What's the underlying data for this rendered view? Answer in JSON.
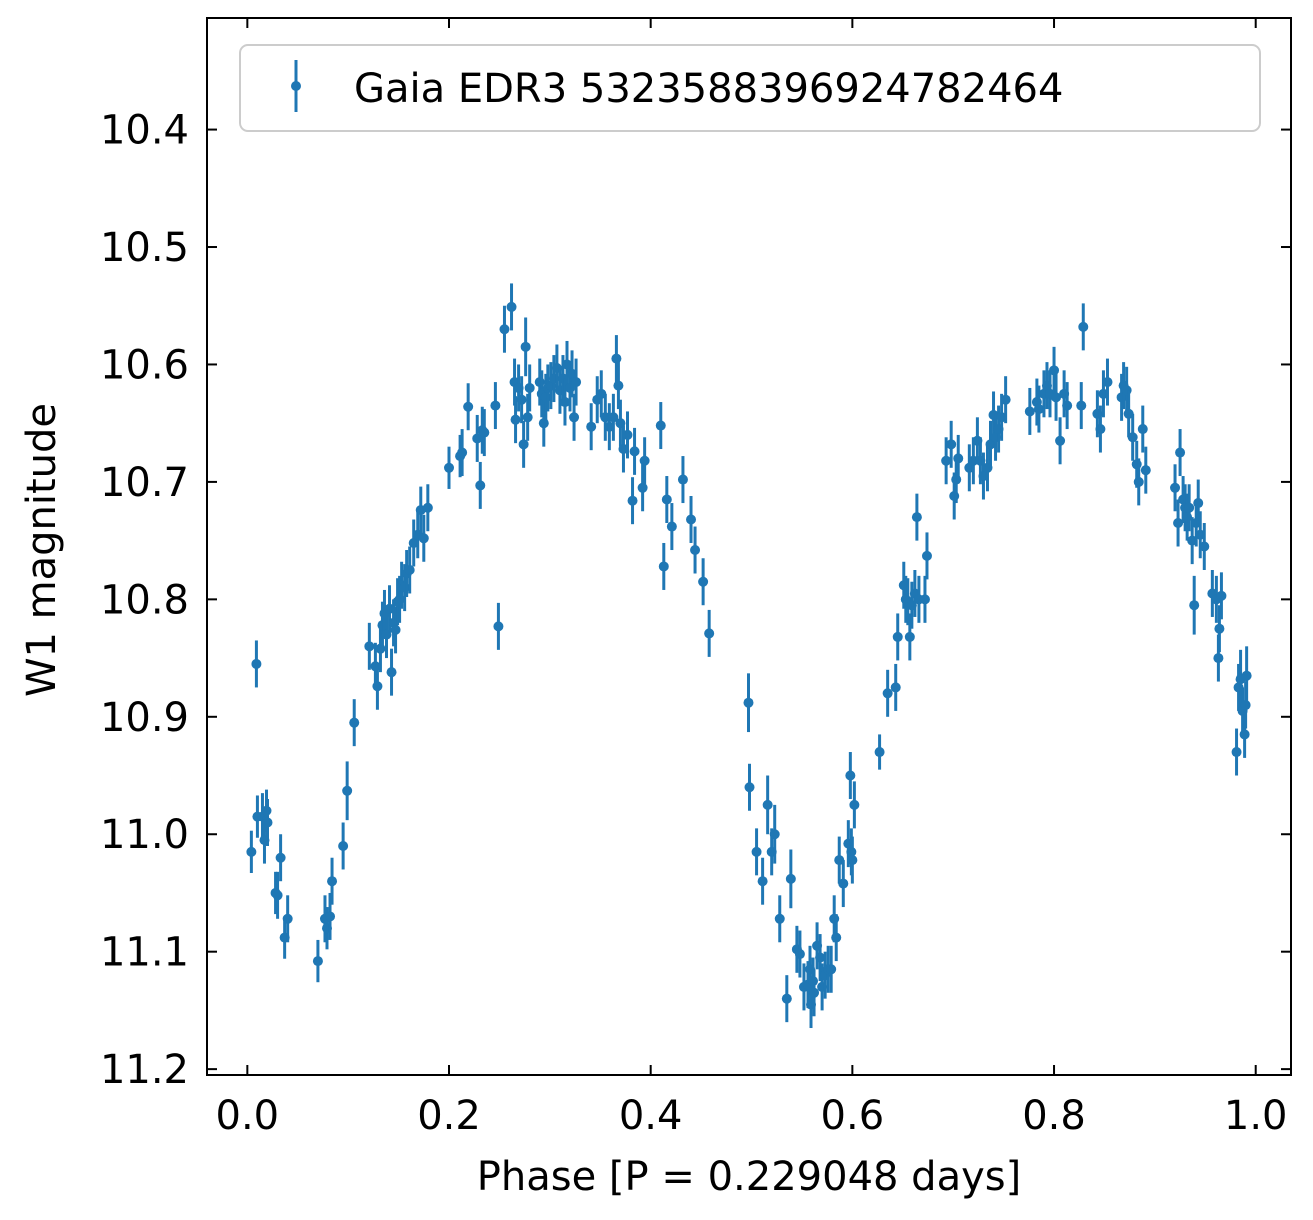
{
  "chart_data": {
    "type": "scatter",
    "title": "",
    "xlabel": "Phase [P = 0.229048 days]",
    "ylabel": "W1 magnitude",
    "xlim": [
      -0.04,
      1.035
    ],
    "ylim": [
      11.205,
      10.305
    ],
    "y_inverted": true,
    "grid": false,
    "legend_position": "top-right",
    "x_ticks": [
      "0.0",
      "0.2",
      "0.4",
      "0.6",
      "0.8",
      "1.0"
    ],
    "y_ticks": [
      "10.4",
      "10.5",
      "10.6",
      "10.7",
      "10.8",
      "10.9",
      "11.0",
      "11.1",
      "11.2"
    ],
    "colors": {
      "series": "#1f77b4",
      "axes": "#000000",
      "legend_frame": "#cccccc"
    },
    "series": [
      {
        "name": "Gaia EDR3 5323588396924782464",
        "points": [
          [
            0.004,
            11.015,
            0.018
          ],
          [
            0.009,
            10.855,
            0.02
          ],
          [
            0.01,
            10.985,
            0.018
          ],
          [
            0.015,
            10.985,
            0.02
          ],
          [
            0.017,
            11.005,
            0.02
          ],
          [
            0.019,
            10.98,
            0.018
          ],
          [
            0.02,
            10.99,
            0.02
          ],
          [
            0.028,
            11.05,
            0.018
          ],
          [
            0.03,
            11.052,
            0.02
          ],
          [
            0.033,
            11.02,
            0.02
          ],
          [
            0.037,
            11.088,
            0.018
          ],
          [
            0.04,
            11.072,
            0.02
          ],
          [
            0.07,
            11.108,
            0.018
          ],
          [
            0.077,
            11.072,
            0.02
          ],
          [
            0.079,
            11.08,
            0.018
          ],
          [
            0.082,
            11.07,
            0.02
          ],
          [
            0.084,
            11.04,
            0.02
          ],
          [
            0.095,
            11.01,
            0.02
          ],
          [
            0.099,
            10.963,
            0.025
          ],
          [
            0.106,
            10.905,
            0.02
          ],
          [
            0.121,
            10.84,
            0.02
          ],
          [
            0.127,
            10.857,
            0.02
          ],
          [
            0.129,
            10.874,
            0.02
          ],
          [
            0.132,
            10.842,
            0.02
          ],
          [
            0.134,
            10.822,
            0.02
          ],
          [
            0.136,
            10.812,
            0.02
          ],
          [
            0.138,
            10.83,
            0.02
          ],
          [
            0.141,
            10.808,
            0.02
          ],
          [
            0.143,
            10.862,
            0.02
          ],
          [
            0.145,
            10.82,
            0.02
          ],
          [
            0.147,
            10.826,
            0.02
          ],
          [
            0.149,
            10.802,
            0.02
          ],
          [
            0.151,
            10.8,
            0.02
          ],
          [
            0.153,
            10.788,
            0.02
          ],
          [
            0.156,
            10.79,
            0.02
          ],
          [
            0.158,
            10.778,
            0.02
          ],
          [
            0.161,
            10.775,
            0.02
          ],
          [
            0.165,
            10.752,
            0.02
          ],
          [
            0.169,
            10.745,
            0.02
          ],
          [
            0.172,
            10.724,
            0.02
          ],
          [
            0.175,
            10.748,
            0.02
          ],
          [
            0.179,
            10.722,
            0.02
          ],
          [
            0.2,
            10.688,
            0.018
          ],
          [
            0.211,
            10.678,
            0.018
          ],
          [
            0.213,
            10.675,
            0.02
          ],
          [
            0.219,
            10.636,
            0.02
          ],
          [
            0.228,
            10.663,
            0.02
          ],
          [
            0.231,
            10.703,
            0.02
          ],
          [
            0.233,
            10.656,
            0.02
          ],
          [
            0.235,
            10.658,
            0.02
          ],
          [
            0.246,
            10.635,
            0.02
          ],
          [
            0.249,
            10.823,
            0.02
          ],
          [
            0.255,
            10.57,
            0.02
          ],
          [
            0.262,
            10.551,
            0.02
          ],
          [
            0.265,
            10.615,
            0.02
          ],
          [
            0.266,
            10.647,
            0.02
          ],
          [
            0.269,
            10.62,
            0.02
          ],
          [
            0.272,
            10.63,
            0.02
          ],
          [
            0.274,
            10.668,
            0.02
          ],
          [
            0.276,
            10.585,
            0.025
          ],
          [
            0.278,
            10.645,
            0.02
          ],
          [
            0.28,
            10.62,
            0.02
          ],
          [
            0.29,
            10.615,
            0.02
          ],
          [
            0.292,
            10.625,
            0.02
          ],
          [
            0.294,
            10.65,
            0.02
          ],
          [
            0.296,
            10.628,
            0.02
          ],
          [
            0.298,
            10.62,
            0.02
          ],
          [
            0.301,
            10.618,
            0.02
          ],
          [
            0.304,
            10.612,
            0.02
          ],
          [
            0.307,
            10.603,
            0.02
          ],
          [
            0.31,
            10.622,
            0.02
          ],
          [
            0.313,
            10.612,
            0.02
          ],
          [
            0.315,
            10.632,
            0.02
          ],
          [
            0.317,
            10.6,
            0.02
          ],
          [
            0.32,
            10.62,
            0.02
          ],
          [
            0.322,
            10.608,
            0.02
          ],
          [
            0.324,
            10.645,
            0.02
          ],
          [
            0.326,
            10.615,
            0.02
          ],
          [
            0.341,
            10.653,
            0.02
          ],
          [
            0.347,
            10.63,
            0.02
          ],
          [
            0.351,
            10.625,
            0.02
          ],
          [
            0.355,
            10.645,
            0.02
          ],
          [
            0.359,
            10.653,
            0.02
          ],
          [
            0.363,
            10.645,
            0.02
          ],
          [
            0.366,
            10.595,
            0.02
          ],
          [
            0.368,
            10.618,
            0.02
          ],
          [
            0.37,
            10.65,
            0.02
          ],
          [
            0.373,
            10.672,
            0.02
          ],
          [
            0.377,
            10.66,
            0.02
          ],
          [
            0.382,
            10.716,
            0.02
          ],
          [
            0.384,
            10.674,
            0.02
          ],
          [
            0.392,
            10.705,
            0.02
          ],
          [
            0.394,
            10.682,
            0.02
          ],
          [
            0.41,
            10.652,
            0.02
          ],
          [
            0.413,
            10.772,
            0.02
          ],
          [
            0.416,
            10.715,
            0.02
          ],
          [
            0.421,
            10.738,
            0.02
          ],
          [
            0.432,
            10.698,
            0.02
          ],
          [
            0.44,
            10.732,
            0.02
          ],
          [
            0.444,
            10.758,
            0.02
          ],
          [
            0.452,
            10.785,
            0.02
          ],
          [
            0.458,
            10.829,
            0.02
          ],
          [
            0.497,
            10.888,
            0.025
          ],
          [
            0.498,
            10.96,
            0.02
          ],
          [
            0.505,
            11.015,
            0.02
          ],
          [
            0.511,
            11.04,
            0.02
          ],
          [
            0.516,
            10.975,
            0.025
          ],
          [
            0.52,
            11.015,
            0.02
          ],
          [
            0.523,
            11.0,
            0.025
          ],
          [
            0.528,
            11.072,
            0.02
          ],
          [
            0.535,
            11.14,
            0.02
          ],
          [
            0.539,
            11.038,
            0.025
          ],
          [
            0.545,
            11.098,
            0.02
          ],
          [
            0.548,
            11.102,
            0.02
          ],
          [
            0.552,
            11.13,
            0.02
          ],
          [
            0.556,
            11.128,
            0.02
          ],
          [
            0.558,
            11.115,
            0.02
          ],
          [
            0.559,
            11.145,
            0.02
          ],
          [
            0.561,
            11.125,
            0.02
          ],
          [
            0.562,
            11.135,
            0.02
          ],
          [
            0.565,
            11.095,
            0.02
          ],
          [
            0.568,
            11.105,
            0.02
          ],
          [
            0.57,
            11.13,
            0.02
          ],
          [
            0.573,
            11.12,
            0.02
          ],
          [
            0.576,
            11.115,
            0.02
          ],
          [
            0.579,
            11.115,
            0.02
          ],
          [
            0.582,
            11.072,
            0.02
          ],
          [
            0.584,
            11.088,
            0.02
          ],
          [
            0.587,
            11.022,
            0.02
          ],
          [
            0.591,
            11.042,
            0.02
          ],
          [
            0.596,
            11.008,
            0.02
          ],
          [
            0.598,
            10.95,
            0.02
          ],
          [
            0.599,
            11.015,
            0.02
          ],
          [
            0.6,
            11.022,
            0.02
          ],
          [
            0.602,
            10.975,
            0.02
          ],
          [
            0.627,
            10.93,
            0.015
          ],
          [
            0.635,
            10.88,
            0.02
          ],
          [
            0.643,
            10.875,
            0.02
          ],
          [
            0.645,
            10.832,
            0.02
          ],
          [
            0.651,
            10.788,
            0.02
          ],
          [
            0.653,
            10.8,
            0.02
          ],
          [
            0.655,
            10.802,
            0.02
          ],
          [
            0.657,
            10.832,
            0.02
          ],
          [
            0.659,
            10.805,
            0.02
          ],
          [
            0.662,
            10.795,
            0.02
          ],
          [
            0.664,
            10.73,
            0.02
          ],
          [
            0.666,
            10.8,
            0.02
          ],
          [
            0.672,
            10.8,
            0.02
          ],
          [
            0.674,
            10.763,
            0.02
          ],
          [
            0.693,
            10.682,
            0.02
          ],
          [
            0.698,
            10.668,
            0.02
          ],
          [
            0.701,
            10.712,
            0.02
          ],
          [
            0.703,
            10.698,
            0.02
          ],
          [
            0.705,
            10.68,
            0.02
          ],
          [
            0.716,
            10.688,
            0.02
          ],
          [
            0.72,
            10.682,
            0.02
          ],
          [
            0.724,
            10.665,
            0.02
          ],
          [
            0.727,
            10.682,
            0.02
          ],
          [
            0.73,
            10.695,
            0.02
          ],
          [
            0.734,
            10.688,
            0.02
          ],
          [
            0.737,
            10.668,
            0.02
          ],
          [
            0.74,
            10.643,
            0.02
          ],
          [
            0.742,
            10.662,
            0.02
          ],
          [
            0.745,
            10.655,
            0.02
          ],
          [
            0.748,
            10.645,
            0.02
          ],
          [
            0.752,
            10.63,
            0.02
          ],
          [
            0.776,
            10.64,
            0.02
          ],
          [
            0.783,
            10.632,
            0.02
          ],
          [
            0.785,
            10.638,
            0.02
          ],
          [
            0.79,
            10.625,
            0.02
          ],
          [
            0.793,
            10.618,
            0.02
          ],
          [
            0.796,
            10.625,
            0.02
          ],
          [
            0.8,
            10.605,
            0.02
          ],
          [
            0.802,
            10.628,
            0.02
          ],
          [
            0.806,
            10.665,
            0.02
          ],
          [
            0.81,
            10.625,
            0.02
          ],
          [
            0.813,
            10.635,
            0.02
          ],
          [
            0.827,
            10.635,
            0.02
          ],
          [
            0.829,
            10.568,
            0.02
          ],
          [
            0.843,
            10.642,
            0.02
          ],
          [
            0.846,
            10.655,
            0.02
          ],
          [
            0.849,
            10.625,
            0.02
          ],
          [
            0.853,
            10.615,
            0.02
          ],
          [
            0.867,
            10.628,
            0.02
          ],
          [
            0.869,
            10.618,
            0.02
          ],
          [
            0.872,
            10.622,
            0.02
          ],
          [
            0.874,
            10.642,
            0.02
          ],
          [
            0.878,
            10.662,
            0.02
          ],
          [
            0.882,
            10.685,
            0.02
          ],
          [
            0.884,
            10.7,
            0.02
          ],
          [
            0.888,
            10.655,
            0.02
          ],
          [
            0.891,
            10.69,
            0.02
          ],
          [
            0.92,
            10.705,
            0.02
          ],
          [
            0.923,
            10.735,
            0.02
          ],
          [
            0.925,
            10.675,
            0.02
          ],
          [
            0.928,
            10.715,
            0.02
          ],
          [
            0.93,
            10.722,
            0.02
          ],
          [
            0.932,
            10.73,
            0.02
          ],
          [
            0.934,
            10.722,
            0.02
          ],
          [
            0.937,
            10.75,
            0.02
          ],
          [
            0.939,
            10.805,
            0.025
          ],
          [
            0.941,
            10.735,
            0.02
          ],
          [
            0.943,
            10.718,
            0.02
          ],
          [
            0.945,
            10.745,
            0.02
          ],
          [
            0.949,
            10.755,
            0.02
          ],
          [
            0.957,
            10.795,
            0.02
          ],
          [
            0.961,
            10.8,
            0.02
          ],
          [
            0.963,
            10.85,
            0.02
          ],
          [
            0.964,
            10.825,
            0.02
          ],
          [
            0.966,
            10.797,
            0.02
          ],
          [
            0.981,
            10.93,
            0.02
          ],
          [
            0.983,
            10.875,
            0.02
          ],
          [
            0.985,
            10.868,
            0.025
          ],
          [
            0.987,
            10.895,
            0.02
          ],
          [
            0.989,
            10.915,
            0.02
          ],
          [
            0.99,
            10.89,
            0.02
          ],
          [
            0.991,
            10.865,
            0.025
          ]
        ]
      }
    ]
  }
}
